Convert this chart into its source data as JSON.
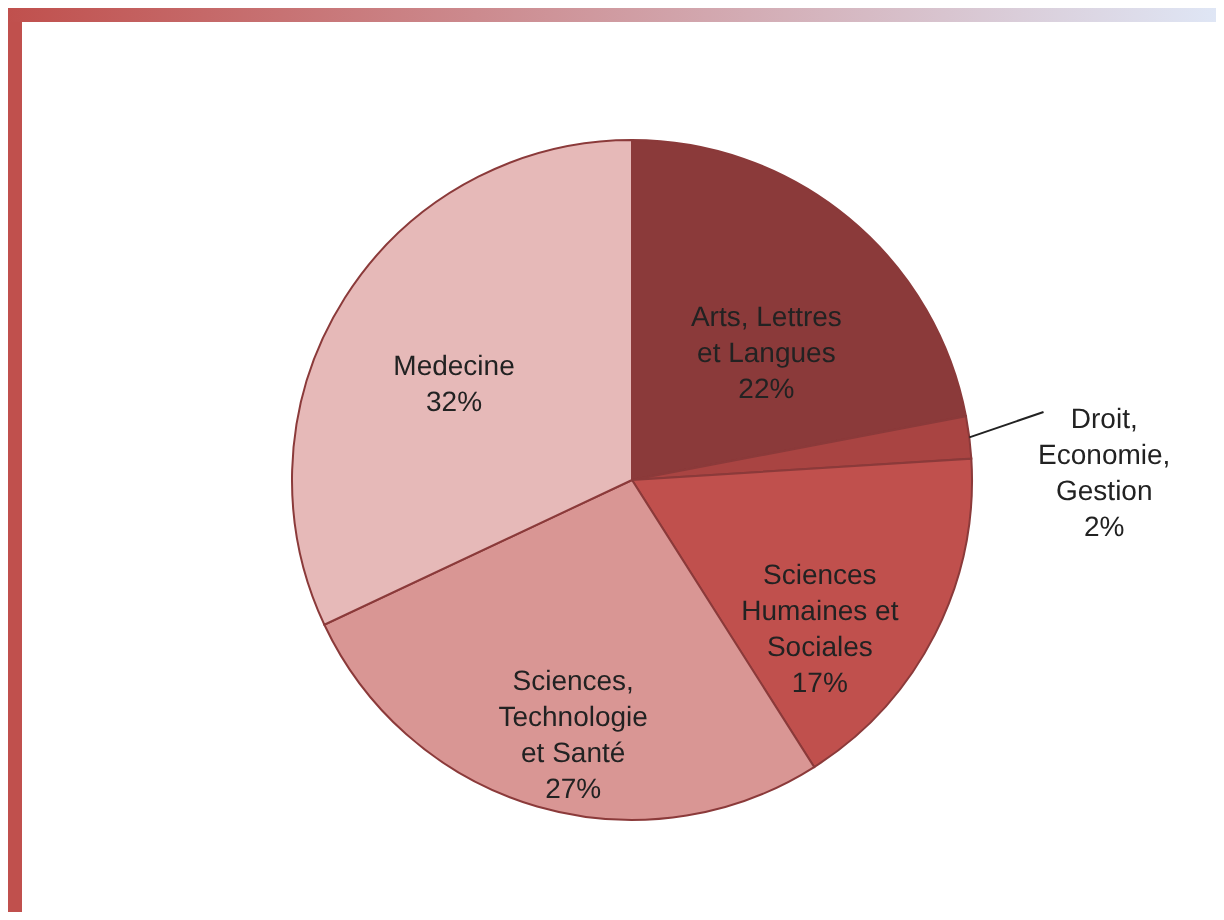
{
  "chart_data": {
    "type": "pie",
    "categories": [
      "Arts, Lettres et Langues",
      "Droit, Economie, Gestion",
      "Sciences Humaines et Sociales",
      "Sciences, Technologie et Santé",
      "Medecine"
    ],
    "values": [
      22,
      2,
      17,
      27,
      32
    ],
    "colors": [
      "#8b3a3a",
      "#a94442",
      "#c0504d",
      "#d99694",
      "#e6b9b8"
    ],
    "value_labels": [
      "22%",
      "2%",
      "17%",
      "27%",
      "32%"
    ]
  }
}
